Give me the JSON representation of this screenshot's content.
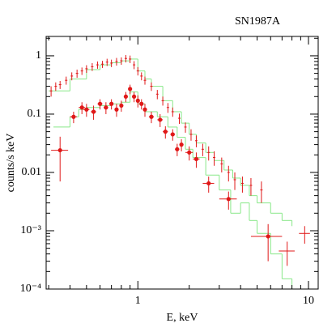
{
  "chart_data": {
    "type": "scatter",
    "title": "SN1987A",
    "xlabel": "E, keV",
    "ylabel": "counts/s keV",
    "xscale": "log",
    "yscale": "log",
    "xlim": [
      0.29,
      11.4
    ],
    "ylim": [
      0.0001,
      2.15
    ],
    "xticks": [
      1,
      10
    ],
    "xminorticks": [
      0.3,
      0.4,
      0.5,
      0.6,
      0.7,
      0.8,
      0.9,
      2,
      3,
      4,
      5,
      6,
      7,
      8,
      9
    ],
    "yticks": [
      {
        "value": 0.0001,
        "label": "10⁻⁴"
      },
      {
        "value": 0.001,
        "label": "10⁻³"
      },
      0.01,
      0.1,
      1
    ],
    "yminorticks": [
      0.0002,
      0.0003,
      0.0004,
      0.0005,
      0.0006,
      0.0007,
      0.0008,
      0.0009,
      0.002,
      0.003,
      0.004,
      0.005,
      0.006,
      0.007,
      0.008,
      0.009,
      0.02,
      0.03,
      0.04,
      0.05,
      0.06,
      0.07,
      0.08,
      0.09,
      0.2,
      0.3,
      0.4,
      0.5,
      0.6,
      0.7,
      0.8,
      0.9,
      2
    ],
    "series": [
      {
        "kind": "errorbar",
        "marker": "none",
        "color": "#e01818",
        "x": [
          0.31,
          0.33,
          0.35,
          0.38,
          0.41,
          0.44,
          0.47,
          0.5,
          0.54,
          0.58,
          0.62,
          0.66,
          0.7,
          0.75,
          0.8,
          0.85,
          0.9,
          0.95,
          1.0,
          1.05,
          1.1,
          1.2,
          1.3,
          1.4,
          1.5,
          1.6,
          1.75,
          1.9,
          2.05,
          2.2,
          2.4,
          2.6,
          2.8,
          3.1,
          3.4,
          3.7,
          4.1,
          4.6,
          5.3
        ],
        "values": [
          0.25,
          0.3,
          0.32,
          0.38,
          0.45,
          0.5,
          0.55,
          0.6,
          0.65,
          0.7,
          0.72,
          0.78,
          0.75,
          0.8,
          0.82,
          0.9,
          0.88,
          0.7,
          0.55,
          0.45,
          0.38,
          0.3,
          0.22,
          0.17,
          0.13,
          0.11,
          0.085,
          0.06,
          0.045,
          0.035,
          0.025,
          0.022,
          0.018,
          0.014,
          0.01,
          0.0075,
          0.0065,
          0.006,
          0.005
        ],
        "yerr": [
          0.05,
          0.05,
          0.05,
          0.06,
          0.07,
          0.08,
          0.08,
          0.09,
          0.1,
          0.1,
          0.1,
          0.11,
          0.11,
          0.12,
          0.12,
          0.13,
          0.13,
          0.11,
          0.09,
          0.07,
          0.06,
          0.05,
          0.04,
          0.03,
          0.025,
          0.02,
          0.017,
          0.012,
          0.01,
          0.008,
          0.006,
          0.006,
          0.005,
          0.004,
          0.003,
          0.0025,
          0.002,
          0.002,
          0.002
        ]
      },
      {
        "kind": "errorbar",
        "marker": "dot",
        "color": "#e01818",
        "x": [
          0.35,
          0.42,
          0.47,
          0.5,
          0.55,
          0.6,
          0.65,
          0.7,
          0.75,
          0.8,
          0.85,
          0.9,
          0.95,
          1.0,
          1.05,
          1.1,
          1.2,
          1.35,
          1.45,
          1.6,
          1.7,
          1.8,
          2.0,
          2.2,
          2.6,
          3.4,
          5.8
        ],
        "values": [
          0.024,
          0.09,
          0.13,
          0.12,
          0.11,
          0.15,
          0.13,
          0.15,
          0.12,
          0.14,
          0.2,
          0.27,
          0.2,
          0.17,
          0.15,
          0.12,
          0.09,
          0.08,
          0.05,
          0.045,
          0.025,
          0.03,
          0.022,
          0.017,
          0.0065,
          0.0035,
          0.0008
        ],
        "xerr": [
          0.04,
          0.02,
          0.02,
          0.02,
          0.02,
          0.02,
          0.02,
          0.02,
          0.02,
          0.02,
          0.02,
          0.02,
          0.02,
          0.02,
          0.02,
          0.03,
          0.04,
          0.05,
          0.05,
          0.05,
          0.05,
          0.05,
          0.1,
          0.1,
          0.2,
          0.4,
          1.2
        ],
        "yerr": [
          0.017,
          0.02,
          0.03,
          0.03,
          0.03,
          0.03,
          0.03,
          0.03,
          0.03,
          0.03,
          0.04,
          0.05,
          0.04,
          0.04,
          0.03,
          0.03,
          0.02,
          0.02,
          0.012,
          0.01,
          0.006,
          0.007,
          0.006,
          0.005,
          0.002,
          0.0012,
          0.0005
        ]
      },
      {
        "kind": "errorbar",
        "marker": "none",
        "color": "#e01818",
        "x": [
          7.5,
          9.5
        ],
        "values": [
          0.00045,
          0.0009
        ],
        "xerr": [
          0.8,
          0.7
        ],
        "yerr": [
          0.0002,
          0.0003
        ]
      },
      {
        "kind": "step",
        "color": "#88e888",
        "x": [
          0.32,
          0.4,
          0.45,
          0.5,
          0.55,
          0.6,
          0.7,
          0.8,
          0.9,
          1.0,
          1.1,
          1.3,
          1.5,
          1.7,
          1.9,
          2.1,
          2.5,
          3.0,
          3.5,
          4.0,
          4.5,
          5.0,
          6.0,
          7.0,
          8.0,
          9.0
        ],
        "values": [
          0.06,
          0.09,
          0.12,
          0.13,
          0.13,
          0.14,
          0.15,
          0.16,
          0.24,
          0.15,
          0.11,
          0.09,
          0.06,
          0.04,
          0.025,
          0.018,
          0.009,
          0.005,
          0.002,
          0.003,
          0.0015,
          0.0009,
          0.0004,
          0.00015,
          0.0001,
          0.0001
        ]
      },
      {
        "kind": "step",
        "color": "#88e888",
        "x": [
          0.3,
          0.4,
          0.5,
          0.6,
          0.7,
          0.8,
          0.9,
          1.0,
          1.1,
          1.2,
          1.4,
          1.6,
          1.8,
          2.0,
          2.2,
          2.5,
          2.8,
          3.2,
          3.6,
          4.0,
          4.5,
          5.0,
          6.0,
          7.0,
          8.0
        ],
        "values": [
          0.25,
          0.4,
          0.58,
          0.7,
          0.76,
          0.82,
          0.88,
          0.55,
          0.4,
          0.3,
          0.17,
          0.11,
          0.07,
          0.045,
          0.032,
          0.022,
          0.016,
          0.011,
          0.008,
          0.006,
          0.004,
          0.003,
          0.002,
          0.0015,
          0.0012
        ]
      }
    ]
  }
}
